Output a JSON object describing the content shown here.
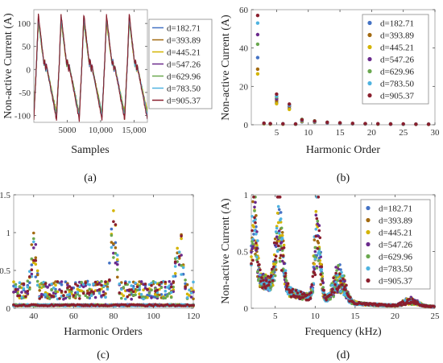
{
  "colors": {
    "series": [
      "#4472c4",
      "#a36a10",
      "#d4b400",
      "#6a2a8c",
      "#6aa84f",
      "#4fb3e0",
      "#8a1f2e"
    ],
    "axis": "#555555",
    "frame": "#999999"
  },
  "legend_labels": [
    "d=182.71",
    "d=393.89",
    "d=445.21",
    "d=547.26",
    "d=629.96",
    "d=783.50",
    "d=905.37"
  ],
  "chart_data": [
    {
      "panel": "a",
      "tag": "(a)",
      "type": "line",
      "xlabel": "Samples",
      "ylabel": "Non-active Current (A)",
      "xlim": [
        0,
        17000
      ],
      "ylim": [
        -115,
        130
      ],
      "xticks": [
        5000,
        10000,
        15000
      ],
      "xtick_labels": [
        "5000",
        "10,000",
        "15,000"
      ],
      "yticks": [
        -100,
        -50,
        0,
        50,
        100
      ],
      "ytick_labels": [
        "-100",
        "-50",
        "0",
        "50",
        "100"
      ],
      "legend": "right-outside",
      "waveform": {
        "periods": 5,
        "max": 120,
        "min": -110,
        "samples_per_period": 3400
      },
      "series": [
        {
          "name": "d=182.71",
          "amp": 0.93
        },
        {
          "name": "d=393.89",
          "amp": 0.97
        },
        {
          "name": "d=445.21",
          "amp": 0.85
        },
        {
          "name": "d=547.26",
          "amp": 0.9
        },
        {
          "name": "d=629.96",
          "amp": 0.88
        },
        {
          "name": "d=783.50",
          "amp": 0.95
        },
        {
          "name": "d=905.37",
          "amp": 1.0
        }
      ]
    },
    {
      "panel": "b",
      "tag": "(b)",
      "type": "scatter",
      "xlabel": "Harmonic Order",
      "ylabel": "Non-active Current (A)",
      "xlim": [
        1,
        30
      ],
      "ylim": [
        0,
        60
      ],
      "xticks": [
        5,
        10,
        15,
        20,
        25,
        30
      ],
      "yticks": [
        0,
        20,
        40,
        60
      ],
      "legend": "top-right",
      "series": [
        {
          "name": "d=182.71",
          "points": [
            [
              2,
              35
            ],
            [
              3,
              0.5
            ],
            [
              4,
              0.4
            ],
            [
              5,
              11.5
            ],
            [
              6,
              0.3
            ],
            [
              7,
              8.5
            ],
            [
              8,
              0.3
            ],
            [
              9,
              1.5
            ],
            [
              11,
              1.2
            ],
            [
              13,
              0.9
            ],
            [
              15,
              0.6
            ],
            [
              17,
              0.4
            ],
            [
              19,
              0.4
            ],
            [
              21,
              0.3
            ],
            [
              23,
              0.3
            ],
            [
              25,
              0.3
            ],
            [
              27,
              0.2
            ],
            [
              29,
              0.2
            ]
          ]
        },
        {
          "name": "d=393.89",
          "points": [
            [
              2,
              29
            ],
            [
              3,
              0.6
            ],
            [
              4,
              0.4
            ],
            [
              5,
              12.5
            ],
            [
              6,
              0.4
            ],
            [
              7,
              9.5
            ],
            [
              8,
              0.3
            ],
            [
              9,
              2.5
            ],
            [
              11,
              1.8
            ],
            [
              13,
              1.2
            ],
            [
              15,
              0.8
            ],
            [
              17,
              0.6
            ],
            [
              19,
              0.5
            ],
            [
              21,
              0.4
            ],
            [
              23,
              0.3
            ],
            [
              25,
              0.3
            ],
            [
              27,
              0.3
            ],
            [
              29,
              0.2
            ]
          ]
        },
        {
          "name": "d=445.21",
          "points": [
            [
              2,
              26.5
            ],
            [
              3,
              0.5
            ],
            [
              4,
              0.3
            ],
            [
              5,
              11
            ],
            [
              6,
              0.3
            ],
            [
              7,
              8
            ],
            [
              8,
              0.3
            ],
            [
              9,
              1.8
            ],
            [
              11,
              1.4
            ],
            [
              13,
              1.0
            ],
            [
              15,
              0.7
            ],
            [
              17,
              0.5
            ],
            [
              19,
              0.4
            ],
            [
              21,
              0.3
            ],
            [
              23,
              0.3
            ],
            [
              25,
              0.2
            ],
            [
              27,
              0.2
            ],
            [
              29,
              0.2
            ]
          ]
        },
        {
          "name": "d=547.26",
          "points": [
            [
              2,
              47
            ],
            [
              3,
              0.7
            ],
            [
              4,
              0.5
            ],
            [
              5,
              13.5
            ],
            [
              6,
              0.4
            ],
            [
              7,
              10
            ],
            [
              8,
              0.3
            ],
            [
              9,
              2.2
            ],
            [
              11,
              1.6
            ],
            [
              13,
              1.1
            ],
            [
              15,
              0.8
            ],
            [
              17,
              0.6
            ],
            [
              19,
              0.5
            ],
            [
              21,
              0.4
            ],
            [
              23,
              0.3
            ],
            [
              25,
              0.3
            ],
            [
              27,
              0.3
            ],
            [
              29,
              0.3
            ]
          ]
        },
        {
          "name": "d=629.96",
          "points": [
            [
              2,
              42
            ],
            [
              3,
              0.6
            ],
            [
              4,
              0.4
            ],
            [
              5,
              14.5
            ],
            [
              6,
              0.4
            ],
            [
              7,
              10.5
            ],
            [
              8,
              0.3
            ],
            [
              9,
              2.8
            ],
            [
              11,
              2.0
            ],
            [
              13,
              1.3
            ],
            [
              15,
              0.9
            ],
            [
              17,
              0.6
            ],
            [
              19,
              0.5
            ],
            [
              21,
              0.4
            ],
            [
              23,
              0.4
            ],
            [
              25,
              0.3
            ],
            [
              27,
              0.3
            ],
            [
              29,
              0.3
            ]
          ]
        },
        {
          "name": "d=783.50",
          "points": [
            [
              2,
              53
            ],
            [
              3,
              0.8
            ],
            [
              4,
              0.5
            ],
            [
              5,
              15
            ],
            [
              6,
              0.5
            ],
            [
              7,
              10.2
            ],
            [
              8,
              0.4
            ],
            [
              9,
              2.4
            ],
            [
              11,
              1.7
            ],
            [
              13,
              1.2
            ],
            [
              15,
              0.9
            ],
            [
              17,
              0.6
            ],
            [
              19,
              0.5
            ],
            [
              21,
              0.4
            ],
            [
              23,
              0.4
            ],
            [
              25,
              0.3
            ],
            [
              27,
              0.3
            ],
            [
              29,
              0.3
            ]
          ]
        },
        {
          "name": "d=905.37",
          "points": [
            [
              2,
              57
            ],
            [
              3,
              0.8
            ],
            [
              4,
              0.6
            ],
            [
              5,
              16
            ],
            [
              6,
              0.5
            ],
            [
              7,
              10.8
            ],
            [
              8,
              0.4
            ],
            [
              9,
              2.6
            ],
            [
              11,
              1.9
            ],
            [
              13,
              1.3
            ],
            [
              15,
              1.0
            ],
            [
              17,
              0.7
            ],
            [
              19,
              0.6
            ],
            [
              21,
              0.5
            ],
            [
              23,
              0.4
            ],
            [
              25,
              0.4
            ],
            [
              27,
              0.3
            ],
            [
              29,
              0.3
            ]
          ]
        }
      ]
    },
    {
      "panel": "c",
      "tag": "(c)",
      "type": "scatter",
      "xlabel": "Harmonic Orders",
      "ylabel": "Non-active Current (A)",
      "xlim": [
        30,
        120
      ],
      "ylim": [
        0,
        1.5
      ],
      "xticks": [
        40,
        60,
        80,
        100,
        120
      ],
      "yticks": [
        0,
        0.5,
        1,
        1.5
      ],
      "legend": "none",
      "generator": {
        "order_start": 30,
        "order_end": 120,
        "baseline": 0.03,
        "peaks": [
          {
            "center": 40,
            "width": 2.5,
            "height": 1.0
          },
          {
            "center": 80,
            "width": 2.5,
            "height": 1.27
          },
          {
            "center": 113,
            "width": 3,
            "height": 1.1
          }
        ],
        "mid_level": 0.3
      }
    },
    {
      "panel": "d",
      "tag": "(d)",
      "type": "scatter",
      "xlabel": "Frequency (kHz)",
      "ylabel": "Non-active Current (A)",
      "xlim": [
        2,
        25
      ],
      "ylim": [
        0,
        1
      ],
      "xticks": [
        5,
        10,
        15,
        20,
        25
      ],
      "yticks": [
        0,
        0.5,
        1
      ],
      "legend": "top-right",
      "generator": {
        "f_start": 2,
        "f_end": 25,
        "step": 0.1,
        "peaks": [
          {
            "center": 2.4,
            "width": 0.35,
            "height": 0.85
          },
          {
            "center": 5.5,
            "width": 0.6,
            "height": 0.93
          },
          {
            "center": 10.3,
            "width": 0.5,
            "height": 0.9
          },
          {
            "center": 13,
            "width": 1.0,
            "height": 0.3
          },
          {
            "center": 22,
            "width": 1.2,
            "height": 0.07
          }
        ]
      }
    }
  ]
}
